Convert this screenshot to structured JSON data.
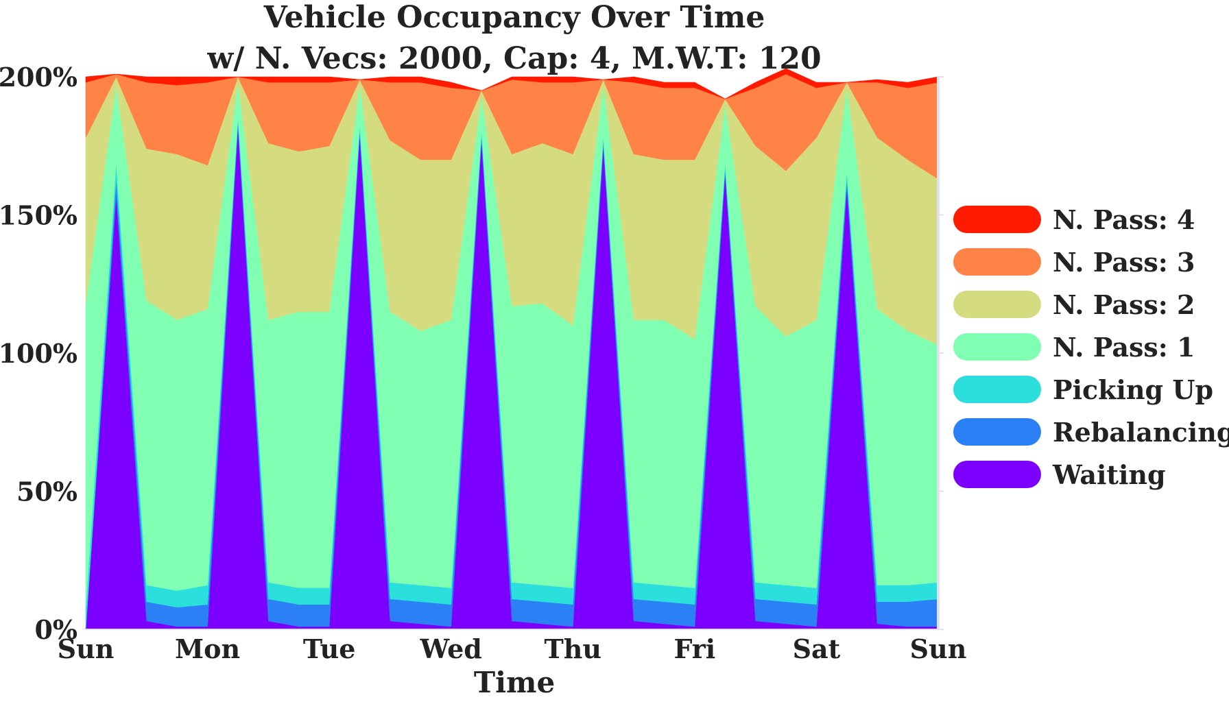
{
  "chart_data": {
    "type": "area",
    "title": "Vehicle Occupancy Over Time",
    "subtitle": "w/ N. Vecs: 2000, Cap: 4, M.W.T: 120",
    "xlabel": "Time",
    "ylabel": "",
    "categories": [
      "Sun",
      "Mon",
      "Tue",
      "Wed",
      "Thu",
      "Fri",
      "Sat",
      "Sun"
    ],
    "xlim": [
      0,
      7
    ],
    "ylim": [
      0,
      200
    ],
    "yticks": [
      "0%",
      "50%",
      "100%",
      "150%",
      "200%"
    ],
    "ytick_values": [
      0,
      50,
      100,
      150,
      200
    ],
    "legend_position": "right",
    "grid": false,
    "x": [
      0,
      0.25,
      0.5,
      0.75,
      1,
      1.25,
      1.5,
      1.75,
      2,
      2.25,
      2.5,
      2.75,
      3,
      3.25,
      3.5,
      3.75,
      4,
      4.25,
      4.5,
      4.75,
      5,
      5.25,
      5.5,
      5.75,
      6,
      6.25,
      6.5,
      6.75,
      7
    ],
    "series": [
      {
        "name": "Waiting",
        "color": "#7b00ff",
        "values": [
          0,
          157,
          3,
          1,
          1,
          182,
          3,
          1,
          1,
          179,
          3,
          2,
          1,
          177,
          3,
          2,
          1,
          175,
          3,
          2,
          1,
          165,
          3,
          2,
          1,
          160,
          2,
          1,
          1
        ]
      },
      {
        "name": "Rebalancing",
        "color": "#2c80f5",
        "values": [
          0,
          6,
          7,
          7,
          8,
          2,
          8,
          8,
          8,
          2,
          8,
          8,
          8,
          2,
          8,
          8,
          8,
          2,
          8,
          8,
          8,
          2,
          8,
          8,
          8,
          3,
          8,
          9,
          10
        ]
      },
      {
        "name": "Picking Up",
        "color": "#2be0dc",
        "values": [
          8,
          6,
          6,
          6,
          7,
          2,
          6,
          6,
          6,
          2,
          6,
          6,
          6,
          2,
          6,
          6,
          6,
          2,
          6,
          6,
          6,
          2,
          6,
          6,
          6,
          3,
          6,
          6,
          6
        ]
      },
      {
        "name": "N. Pass: 1",
        "color": "#80ffb3",
        "values": [
          110,
          28,
          103,
          98,
          100,
          12,
          95,
          100,
          100,
          14,
          98,
          92,
          97,
          12,
          100,
          102,
          95,
          18,
          95,
          96,
          90,
          21,
          100,
          90,
          97,
          30,
          100,
          92,
          86
        ]
      },
      {
        "name": "N. Pass: 2",
        "color": "#d4dc7f",
        "values": [
          60,
          3,
          55,
          60,
          52,
          2,
          64,
          58,
          60,
          2,
          62,
          62,
          58,
          2,
          55,
          58,
          62,
          2,
          60,
          58,
          65,
          2,
          58,
          60,
          66,
          2,
          62,
          62,
          60
        ]
      },
      {
        "name": "N. Pass: 3",
        "color": "#ff8247",
        "values": [
          20,
          1,
          24,
          25,
          30,
          0,
          22,
          25,
          23,
          0,
          21,
          28,
          26,
          0,
          27,
          22,
          26,
          0,
          26,
          26,
          26,
          0,
          21,
          35,
          18,
          0,
          20,
          26,
          35
        ]
      },
      {
        "name": "N. Pass: 4",
        "color": "#ff1a00",
        "values": [
          2,
          0,
          2,
          3,
          2,
          0,
          2,
          2,
          2,
          0,
          2,
          2,
          2,
          0,
          1,
          2,
          2,
          0,
          2,
          2,
          2,
          0,
          2,
          2,
          2,
          0,
          1,
          2,
          2
        ]
      }
    ]
  }
}
